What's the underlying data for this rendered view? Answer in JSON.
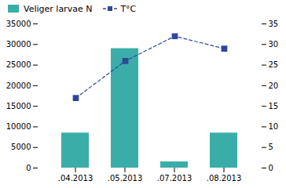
{
  "chart_data": {
    "type": "bar",
    "categories": [
      ".04.2013",
      ".05.2013",
      ".07.2013",
      ".08.2013"
    ],
    "series": [
      {
        "name": "Veliger larvae N",
        "type": "bar",
        "color": "#3aada8",
        "values": [
          8500,
          29000,
          1500,
          8500
        ]
      },
      {
        "name": "T°C",
        "type": "line",
        "axis": "y2",
        "color": "#2e4999",
        "marker": "square",
        "line_style": "dashed",
        "values": [
          17,
          26,
          32,
          29
        ]
      }
    ],
    "ylim": [
      0,
      35000
    ],
    "yticks": [
      0,
      5000,
      10000,
      15000,
      20000,
      25000,
      30000,
      35000
    ],
    "y2lim": [
      0,
      35
    ],
    "y2ticks": [
      0,
      5,
      10,
      15,
      20,
      25,
      30,
      35
    ],
    "legend": "upper left"
  }
}
